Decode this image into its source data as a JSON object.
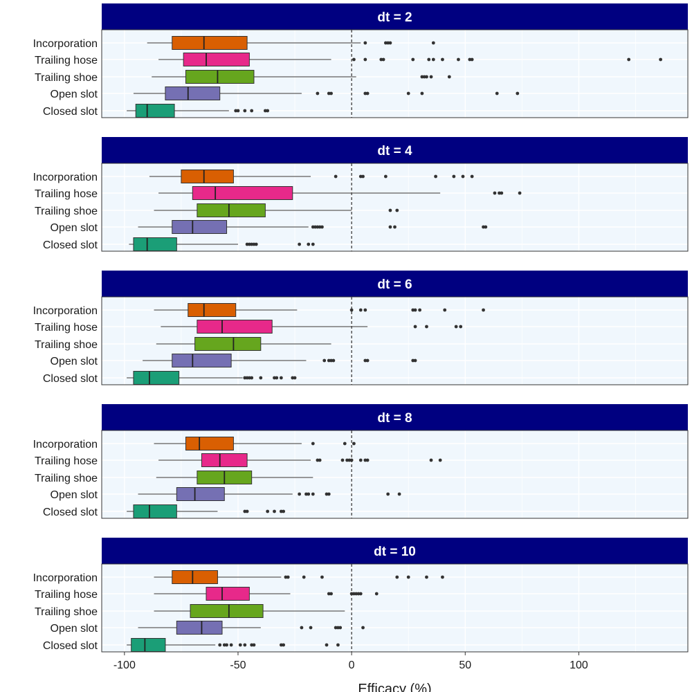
{
  "chart_data": {
    "type": "boxplot",
    "orientation": "horizontal",
    "xlabel": "Efficacy (%)",
    "xlim": [
      -110,
      148
    ],
    "xticks": [
      -100,
      -50,
      0,
      50,
      100
    ],
    "xtick_labels": [
      "-100",
      "-50",
      "0",
      "50",
      "100"
    ],
    "reference_line": 0,
    "grid": true,
    "categories": [
      "Incorporation",
      "Trailing hose",
      "Trailing shoe",
      "Open slot",
      "Closed slot"
    ],
    "colors": {
      "Incorporation": "#d95f02",
      "Trailing hose": "#e7298a",
      "Trailing shoe": "#66a61e",
      "Open slot": "#7570b3",
      "Closed slot": "#1b9e77",
      "strip": "#000080",
      "panel_bg": "#f0f7fd"
    },
    "panels": [
      {
        "title": "dt = 2",
        "boxes": {
          "Incorporation": {
            "whisker_low": -90,
            "q1": -79,
            "median": -65,
            "q3": -46,
            "whisker_high": 4,
            "outliers": [
              6,
              15,
              16,
              17,
              36
            ]
          },
          "Trailing hose": {
            "whisker_low": -85,
            "q1": -74,
            "median": -64,
            "q3": -45,
            "whisker_high": -9,
            "outliers": [
              1,
              6,
              13,
              14,
              27,
              34,
              36,
              40,
              47,
              52,
              53,
              122,
              136
            ]
          },
          "Trailing shoe": {
            "whisker_low": -88,
            "q1": -73,
            "median": -59,
            "q3": -43,
            "whisker_high": 2,
            "outliers": [
              31,
              32,
              33,
              35,
              43
            ]
          },
          "Open slot": {
            "whisker_low": -96,
            "q1": -82,
            "median": -72,
            "q3": -58,
            "whisker_high": -22,
            "outliers": [
              -15,
              -10,
              -9,
              6,
              7,
              25,
              31,
              64,
              73
            ]
          },
          "Closed slot": {
            "whisker_low": -99,
            "q1": -95,
            "median": -90,
            "q3": -78,
            "whisker_high": -54,
            "outliers": [
              -51,
              -50,
              -47,
              -44,
              -38,
              -37
            ]
          }
        }
      },
      {
        "title": "dt = 4",
        "boxes": {
          "Incorporation": {
            "whisker_low": -89,
            "q1": -75,
            "median": -65,
            "q3": -52,
            "whisker_high": -18,
            "outliers": [
              -7,
              4,
              5,
              15,
              37,
              45,
              49,
              53
            ]
          },
          "Trailing hose": {
            "whisker_low": -85,
            "q1": -70,
            "median": -60,
            "q3": -26,
            "whisker_high": 39,
            "outliers": [
              63,
              65,
              66,
              74
            ]
          },
          "Trailing shoe": {
            "whisker_low": -87,
            "q1": -68,
            "median": -54,
            "q3": -38,
            "whisker_high": 0,
            "outliers": [
              17,
              20
            ]
          },
          "Open slot": {
            "whisker_low": -94,
            "q1": -79,
            "median": -70,
            "q3": -55,
            "whisker_high": -19,
            "outliers": [
              -17,
              -16,
              -15,
              -14,
              -13,
              17,
              19,
              58,
              59
            ]
          },
          "Closed slot": {
            "whisker_low": -98,
            "q1": -96,
            "median": -90,
            "q3": -77,
            "whisker_high": -50,
            "outliers": [
              -46,
              -45,
              -44,
              -43,
              -42,
              -23,
              -19,
              -17
            ]
          }
        }
      },
      {
        "title": "dt = 6",
        "boxes": {
          "Incorporation": {
            "whisker_low": -87,
            "q1": -72,
            "median": -65,
            "q3": -51,
            "whisker_high": -24,
            "outliers": [
              0,
              4,
              6,
              27,
              28,
              30,
              41,
              58
            ]
          },
          "Trailing hose": {
            "whisker_low": -84,
            "q1": -68,
            "median": -57,
            "q3": -35,
            "whisker_high": 7,
            "outliers": [
              28,
              33,
              46,
              48
            ]
          },
          "Trailing shoe": {
            "whisker_low": -86,
            "q1": -69,
            "median": -52,
            "q3": -40,
            "whisker_high": -9,
            "outliers": []
          },
          "Open slot": {
            "whisker_low": -92,
            "q1": -79,
            "median": -70,
            "q3": -53,
            "whisker_high": -20,
            "outliers": [
              -12,
              -10,
              -9,
              -8,
              6,
              7,
              27,
              28
            ]
          },
          "Closed slot": {
            "whisker_low": -99,
            "q1": -96,
            "median": -89,
            "q3": -76,
            "whisker_high": -48,
            "outliers": [
              -47,
              -46,
              -45,
              -44,
              -40,
              -34,
              -33,
              -31,
              -26,
              -25
            ]
          }
        }
      },
      {
        "title": "dt = 8",
        "boxes": {
          "Incorporation": {
            "whisker_low": -87,
            "q1": -73,
            "median": -67,
            "q3": -52,
            "whisker_high": -22,
            "outliers": [
              -17,
              -3,
              1
            ]
          },
          "Trailing hose": {
            "whisker_low": -85,
            "q1": -66,
            "median": -58,
            "q3": -46,
            "whisker_high": -18,
            "outliers": [
              -15,
              -14,
              -4,
              -2,
              -1,
              0,
              4,
              6,
              7,
              35,
              39
            ]
          },
          "Trailing shoe": {
            "whisker_low": -86,
            "q1": -68,
            "median": -56,
            "q3": -44,
            "whisker_high": -17,
            "outliers": []
          },
          "Open slot": {
            "whisker_low": -94,
            "q1": -77,
            "median": -69,
            "q3": -56,
            "whisker_high": -26,
            "outliers": [
              -23,
              -20,
              -19,
              -17,
              -11,
              -10,
              16,
              21
            ]
          },
          "Closed slot": {
            "whisker_low": -99,
            "q1": -96,
            "median": -89,
            "q3": -77,
            "whisker_high": -59,
            "outliers": [
              -47,
              -46,
              -37,
              -34,
              -31,
              -30
            ]
          }
        }
      },
      {
        "title": "dt = 10",
        "boxes": {
          "Incorporation": {
            "whisker_low": -87,
            "q1": -79,
            "median": -70,
            "q3": -59,
            "whisker_high": -31,
            "outliers": [
              -29,
              -28,
              -21,
              -13,
              20,
              25,
              33,
              40
            ]
          },
          "Trailing hose": {
            "whisker_low": -87,
            "q1": -64,
            "median": -57,
            "q3": -45,
            "whisker_high": -27,
            "outliers": [
              -10,
              -9,
              0,
              1,
              2,
              3,
              4,
              11
            ]
          },
          "Trailing shoe": {
            "whisker_low": -87,
            "q1": -71,
            "median": -54,
            "q3": -39,
            "whisker_high": -3,
            "outliers": []
          },
          "Open slot": {
            "whisker_low": -94,
            "q1": -77,
            "median": -66,
            "q3": -57,
            "whisker_high": -40,
            "outliers": [
              -22,
              -18,
              -7,
              -6,
              -5,
              5
            ]
          },
          "Closed slot": {
            "whisker_low": -99,
            "q1": -97,
            "median": -91,
            "q3": -82,
            "whisker_high": -60,
            "outliers": [
              -58,
              -56,
              -55,
              -53,
              -49,
              -47,
              -44,
              -43,
              -31,
              -30,
              -11,
              -6
            ]
          }
        }
      }
    ]
  }
}
